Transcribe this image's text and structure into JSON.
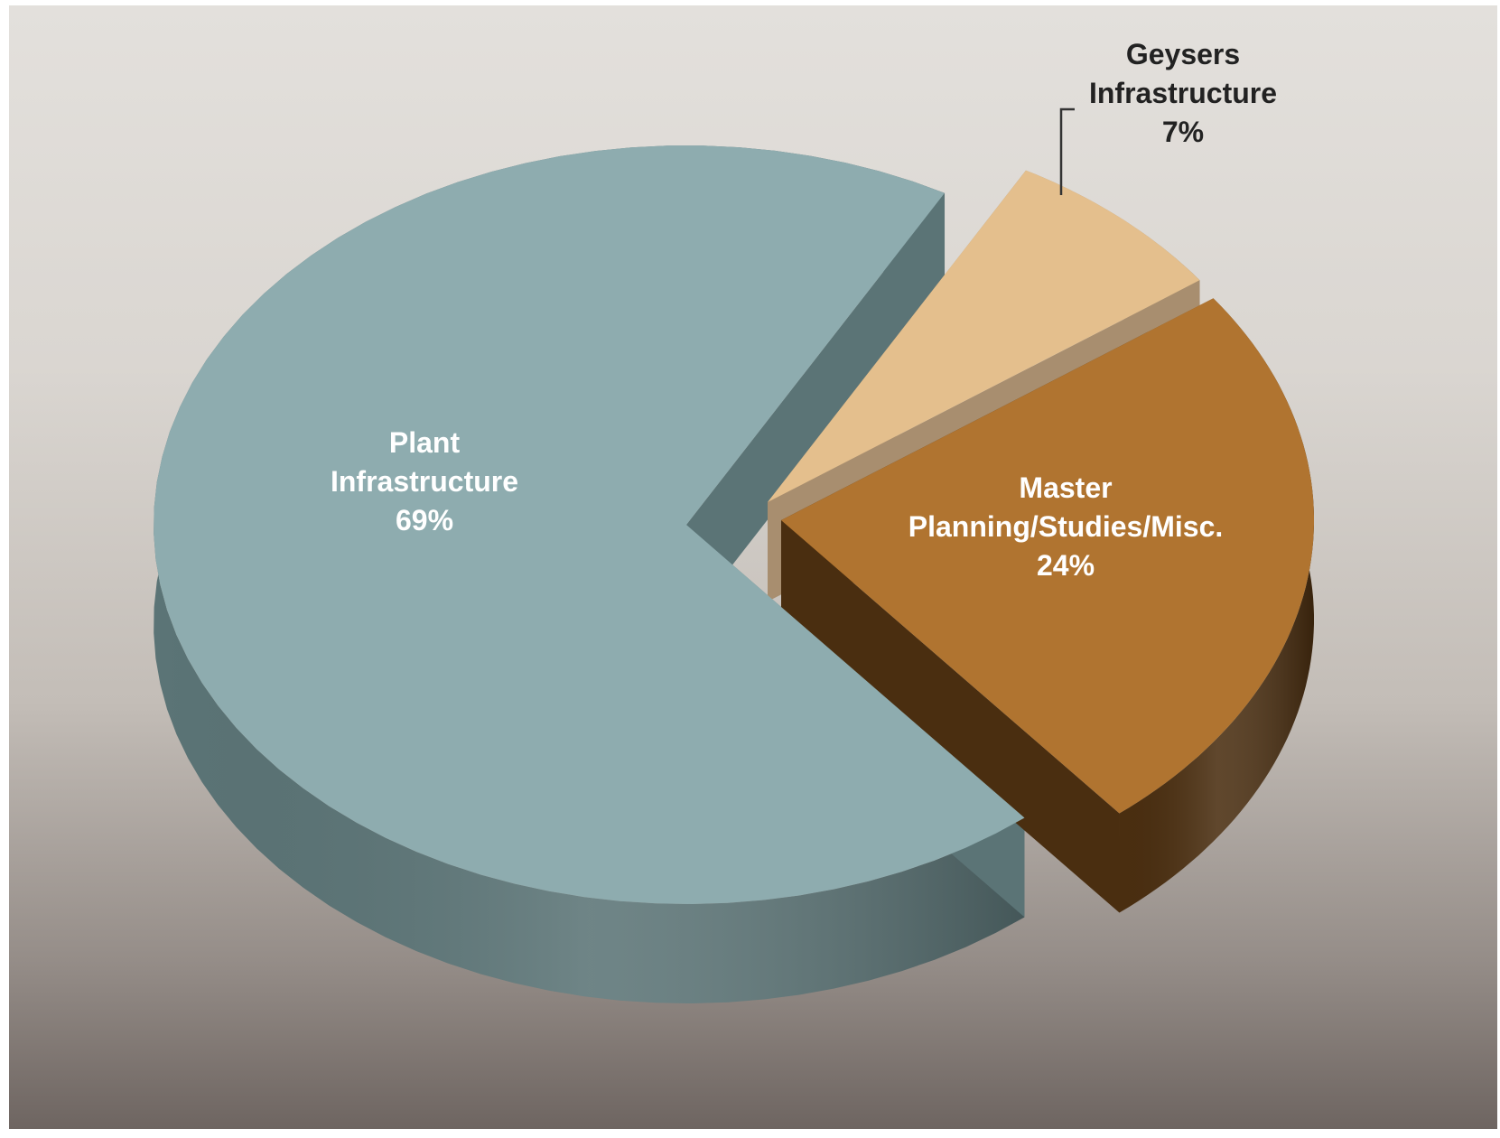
{
  "chart_data": {
    "type": "pie",
    "title": "",
    "slices": [
      {
        "label_lines": [
          "Plant",
          "Infrastructure",
          "69%"
        ],
        "value": 69,
        "color": "#8eacaf",
        "side_color": "#5b7476",
        "label_color": "#ffffff"
      },
      {
        "label_lines": [
          "Geysers",
          "Infrastructure",
          "7%"
        ],
        "value": 7,
        "color": "#e4bf8d",
        "side_color": "#a88e6f",
        "label_color": "#222222"
      },
      {
        "label_lines": [
          "Master",
          "Planning/Studies/Misc.",
          "24%"
        ],
        "value": 24,
        "color": "#b07430",
        "side_color": "#4a2e10",
        "label_color": "#ffffff"
      }
    ]
  }
}
